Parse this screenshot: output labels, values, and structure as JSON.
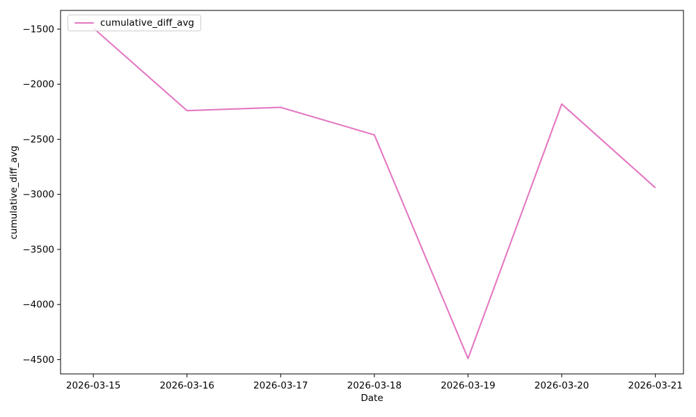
{
  "figure": {
    "background": "#ffffff",
    "spine_color": "#000000",
    "tick_color": "#000000"
  },
  "chart_data": {
    "type": "line",
    "title": "",
    "xlabel": "Date",
    "ylabel": "cumulative_diff_avg",
    "categories": [
      "2026-03-15",
      "2026-03-16",
      "2026-03-17",
      "2026-03-18",
      "2026-03-19",
      "2026-03-20",
      "2026-03-21"
    ],
    "series": [
      {
        "name": "cumulative_diff_avg",
        "color": "#e377c2",
        "values": [
          -1490,
          -2240,
          -2210,
          -2460,
          -4490,
          -2180,
          -2940
        ]
      }
    ],
    "yticks": [
      -1500,
      -2000,
      -2500,
      -3000,
      -3500,
      -4000,
      -4500
    ],
    "ytick_labels": [
      "−1500",
      "−2000",
      "−2500",
      "−3000",
      "−3500",
      "−4000",
      "−4500"
    ],
    "xlim": [
      -0.35,
      6.3
    ],
    "ylim": [
      -4630,
      -1330
    ],
    "grid": false,
    "legend": {
      "label": "cumulative_diff_avg",
      "position": "upper-left"
    }
  }
}
